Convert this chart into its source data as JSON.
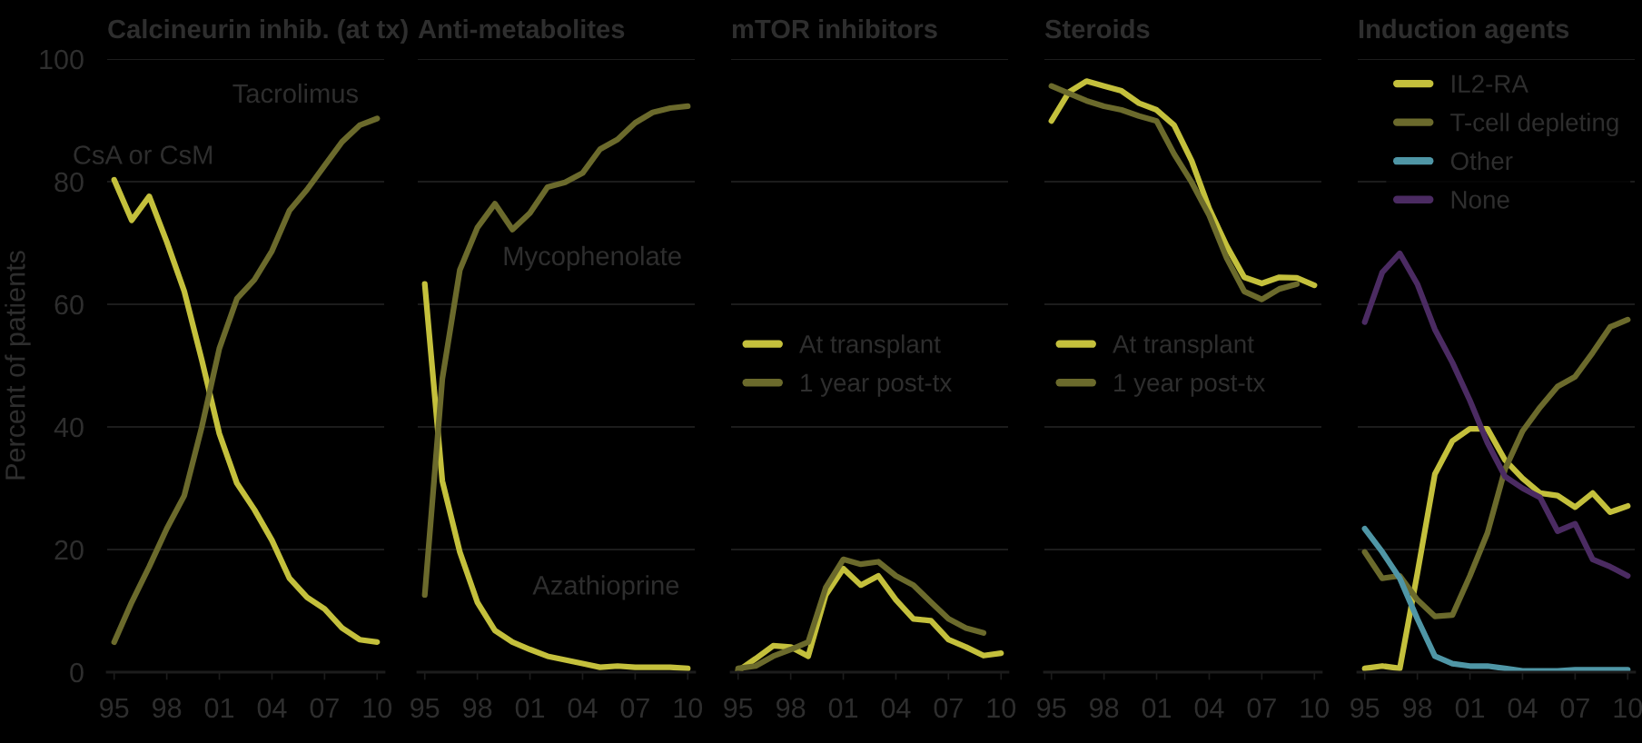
{
  "chart_data": [
    {
      "type": "line",
      "title": "Calcineurin inhib. (at tx)",
      "ylabel": "Percent of patients",
      "x": [
        1995,
        1996,
        1997,
        1998,
        1999,
        2000,
        2001,
        2002,
        2003,
        2004,
        2005,
        2006,
        2007,
        2008,
        2009,
        2010
      ],
      "xlim": [
        1994.6,
        2010.4
      ],
      "xticks": [
        {
          "value": 1995,
          "label": "95"
        },
        {
          "value": 1998,
          "label": "98"
        },
        {
          "value": 2001,
          "label": "01"
        },
        {
          "value": 2004,
          "label": "04"
        },
        {
          "value": 2007,
          "label": "07"
        },
        {
          "value": 2010,
          "label": "10"
        }
      ],
      "ylim": [
        0,
        100
      ],
      "yticks": [
        0,
        20,
        40,
        60,
        80,
        100
      ],
      "grid": "y",
      "legend": false,
      "series": [
        {
          "name": "CsA or CsM",
          "color": "#c4c03c",
          "values": [
            80.3,
            73.7,
            77.6,
            70.2,
            62.1,
            50.9,
            38.9,
            30.8,
            26.5,
            21.5,
            15.3,
            12.2,
            10.3,
            7.2,
            5.3,
            4.9
          ]
        },
        {
          "name": "Tacrolimus",
          "color": "#6b6a2c",
          "values": [
            4.9,
            11.4,
            17.2,
            23.4,
            28.8,
            40,
            52.8,
            60.9,
            64,
            68.7,
            75.3,
            78.7,
            82.6,
            86.5,
            89.2,
            90.3
          ]
        }
      ]
    },
    {
      "type": "line",
      "title": "Anti-metabolites",
      "x": [
        1995,
        1996,
        1997,
        1998,
        1999,
        2000,
        2001,
        2002,
        2003,
        2004,
        2005,
        2006,
        2007,
        2008,
        2009,
        2010
      ],
      "xlim": [
        1994.6,
        2010.4
      ],
      "xticks": [
        {
          "value": 1995,
          "label": "95"
        },
        {
          "value": 1998,
          "label": "98"
        },
        {
          "value": 2001,
          "label": "01"
        },
        {
          "value": 2004,
          "label": "04"
        },
        {
          "value": 2007,
          "label": "07"
        },
        {
          "value": 2010,
          "label": "10"
        }
      ],
      "ylim": [
        0,
        100
      ],
      "yticks": [
        0,
        20,
        40,
        60,
        80,
        100
      ],
      "tick_labels": "x",
      "grid": "y",
      "legend": false,
      "series": [
        {
          "name": "Azathioprine",
          "color": "#c4c03c",
          "values": [
            63.3,
            31.2,
            19.6,
            11.4,
            6.8,
            4.9,
            3.7,
            2.6,
            2,
            1.4,
            0.8,
            1,
            0.8,
            0.8,
            0.8,
            0.6
          ]
        },
        {
          "name": "Mycophenolate",
          "color": "#6b6a2c",
          "values": [
            12.6,
            47.8,
            65.6,
            72.5,
            76.4,
            72.2,
            74.9,
            79.1,
            79.9,
            81.4,
            85.3,
            86.9,
            89.6,
            91.3,
            92,
            92.3
          ]
        }
      ]
    },
    {
      "type": "line",
      "title": "mTOR inhibitors",
      "x": [
        1995,
        1996,
        1997,
        1998,
        1999,
        2000,
        2001,
        2002,
        2003,
        2004,
        2005,
        2006,
        2007,
        2008,
        2009,
        2010
      ],
      "xlim": [
        1994.6,
        2010.4
      ],
      "xticks": [
        {
          "value": 1995,
          "label": "95"
        },
        {
          "value": 1998,
          "label": "98"
        },
        {
          "value": 2001,
          "label": "01"
        },
        {
          "value": 2004,
          "label": "04"
        },
        {
          "value": 2007,
          "label": "07"
        },
        {
          "value": 2010,
          "label": "10"
        }
      ],
      "ylim": [
        0,
        100
      ],
      "yticks": [
        0,
        20,
        40,
        60,
        80,
        100
      ],
      "tick_labels": "x",
      "grid": "y",
      "legend": "left",
      "series": [
        {
          "name": "At transplant",
          "color": "#c4c03c",
          "values": [
            0.2,
            2.2,
            4.3,
            4.1,
            2.6,
            12.6,
            16.9,
            14.2,
            15.7,
            11.8,
            8.7,
            8.4,
            5.3,
            4.1,
            2.7,
            3.1
          ]
        },
        {
          "name": "1 year post-tx",
          "color": "#6b6a2c",
          "values": [
            0.6,
            1,
            2.6,
            3.7,
            4.9,
            13.8,
            18.4,
            17.6,
            18,
            15.7,
            14.2,
            11.4,
            8.7,
            7.2,
            6.4,
            null
          ]
        }
      ]
    },
    {
      "type": "line",
      "title": "Steroids",
      "x": [
        1995,
        1996,
        1997,
        1998,
        1999,
        2000,
        2001,
        2002,
        2003,
        2004,
        2005,
        2006,
        2007,
        2008,
        2009,
        2010
      ],
      "xlim": [
        1994.6,
        2010.4
      ],
      "xticks": [
        {
          "value": 1995,
          "label": "95"
        },
        {
          "value": 1998,
          "label": "98"
        },
        {
          "value": 2001,
          "label": "01"
        },
        {
          "value": 2004,
          "label": "04"
        },
        {
          "value": 2007,
          "label": "07"
        },
        {
          "value": 2010,
          "label": "10"
        }
      ],
      "ylim": [
        0,
        100
      ],
      "yticks": [
        0,
        20,
        40,
        60,
        80,
        100
      ],
      "tick_labels": "x",
      "grid": "y",
      "legend": "left",
      "series": [
        {
          "name": "At transplant",
          "color": "#c4c03c",
          "values": [
            89.9,
            94.6,
            96.4,
            95.6,
            94.8,
            92.8,
            91.7,
            89.2,
            83.4,
            75.6,
            69.5,
            64.4,
            63.4,
            64.4,
            64.3,
            63.1
          ]
        },
        {
          "name": "1 year post-tx",
          "color": "#6b6a2c",
          "values": [
            95.6,
            94.4,
            93.2,
            92.3,
            91.7,
            90.7,
            89.9,
            84.5,
            79.9,
            74.5,
            67.5,
            62.1,
            60.8,
            62.5,
            63.3,
            null
          ]
        }
      ]
    },
    {
      "type": "line",
      "title": "Induction agents",
      "x": [
        1995,
        1996,
        1997,
        1998,
        1999,
        2000,
        2001,
        2002,
        2003,
        2004,
        2005,
        2006,
        2007,
        2008,
        2009,
        2010
      ],
      "xlim": [
        1994.6,
        2010.4
      ],
      "xticks": [
        {
          "value": 1995,
          "label": "95"
        },
        {
          "value": 1998,
          "label": "98"
        },
        {
          "value": 2001,
          "label": "01"
        },
        {
          "value": 2004,
          "label": "04"
        },
        {
          "value": 2007,
          "label": "07"
        },
        {
          "value": 2010,
          "label": "10"
        }
      ],
      "ylim": [
        0,
        100
      ],
      "yticks": [
        0,
        20,
        40,
        60,
        80,
        100
      ],
      "tick_labels": "x",
      "grid": "y",
      "legend": "top right",
      "series": [
        {
          "name": "IL2-RA",
          "color": "#c4c03c",
          "values": [
            0.6,
            1,
            0.6,
            16.1,
            32.3,
            37.7,
            39.7,
            39.7,
            34.6,
            31.6,
            29.2,
            28.8,
            26.9,
            29.2,
            26.1,
            27.1
          ]
        },
        {
          "name": "T-cell depleting",
          "color": "#6b6a2c",
          "values": [
            19.6,
            15.3,
            15.7,
            11.8,
            9.1,
            9.3,
            15.7,
            22.7,
            33.1,
            39.3,
            43.2,
            46.6,
            48.2,
            52.1,
            56.3,
            57.5
          ]
        },
        {
          "name": "Other",
          "color": "#4f96a6",
          "values": [
            23.4,
            19.6,
            15.3,
            8.7,
            2.6,
            1.4,
            1,
            1,
            0.6,
            0.2,
            0.2,
            0.2,
            0.4,
            0.4,
            0.4,
            0.4
          ]
        },
        {
          "name": "None",
          "color": "#4b2b62",
          "values": [
            57.1,
            65.2,
            68.3,
            63.3,
            55.9,
            50.5,
            44.3,
            37.4,
            31.9,
            30,
            28.5,
            23,
            24.2,
            18.4,
            17.2,
            15.7
          ]
        }
      ]
    }
  ]
}
